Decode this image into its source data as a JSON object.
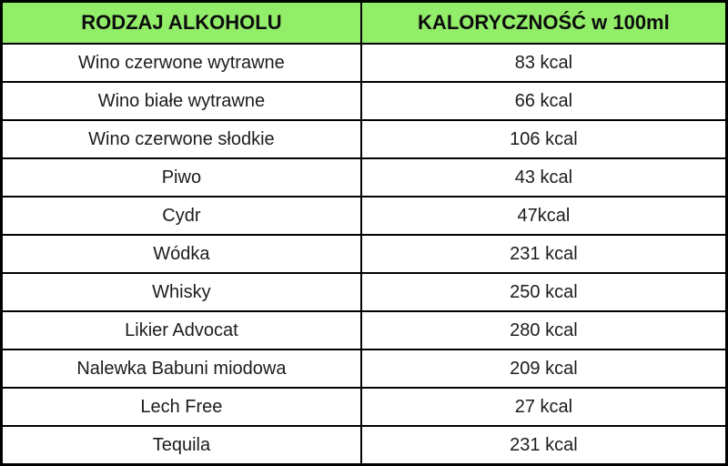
{
  "chart_data": {
    "type": "table",
    "title": "",
    "columns": [
      "RODZAJ ALKOHOLU",
      "KALORYCZNOŚĆ w 100ml"
    ],
    "rows": [
      [
        "Wino czerwone wytrawne",
        "83 kcal"
      ],
      [
        "Wino białe wytrawne",
        "66 kcal"
      ],
      [
        "Wino czerwone słodkie",
        "106 kcal"
      ],
      [
        "Piwo",
        "43 kcal"
      ],
      [
        "Cydr",
        "47kcal"
      ],
      [
        "Wódka",
        "231 kcal"
      ],
      [
        "Whisky",
        "250 kcal"
      ],
      [
        "Likier Advocat",
        "280 kcal"
      ],
      [
        "Nalewka Babuni miodowa",
        "209 kcal"
      ],
      [
        "Lech Free",
        "27 kcal"
      ],
      [
        "Tequila",
        "231 kcal"
      ]
    ],
    "values_kcal": [
      83,
      66,
      106,
      43,
      47,
      231,
      250,
      280,
      209,
      27,
      231
    ],
    "unit": "kcal per 100ml"
  },
  "table": {
    "headers": {
      "type": "RODZAJ ALKOHOLU",
      "calories": "KALORYCZNOŚĆ w 100ml"
    },
    "rows": [
      {
        "type": "Wino czerwone wytrawne",
        "calories": "83 kcal"
      },
      {
        "type": "Wino białe wytrawne",
        "calories": "66 kcal"
      },
      {
        "type": "Wino czerwone słodkie",
        "calories": "106 kcal"
      },
      {
        "type": "Piwo",
        "calories": "43 kcal"
      },
      {
        "type": "Cydr",
        "calories": "47kcal"
      },
      {
        "type": "Wódka",
        "calories": "231 kcal"
      },
      {
        "type": "Whisky",
        "calories": "250 kcal"
      },
      {
        "type": "Likier Advocat",
        "calories": "280 kcal"
      },
      {
        "type": "Nalewka Babuni miodowa",
        "calories": "209 kcal"
      },
      {
        "type": "Lech Free",
        "calories": "27 kcal"
      },
      {
        "type": "Tequila",
        "calories": "231 kcal"
      }
    ]
  },
  "colors": {
    "header_background": "#92ed69",
    "border": "#000000",
    "header_text": "#0d0d0d",
    "body_text": "#1c1c1c",
    "row_background": "#ffffff"
  }
}
